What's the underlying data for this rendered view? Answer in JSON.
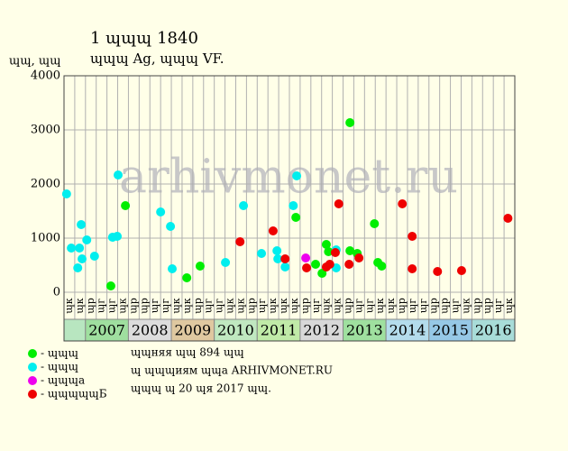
{
  "chart_data": {
    "type": "scatter",
    "title": "1 ɰɰɰ 1840",
    "subtitle": "ɰɰɰ Ag, ɰɰɰ VF.",
    "y_label": "ɰɰ, ɰɰ",
    "watermark": "arhivmonet.ru",
    "xlim": [
      2006.5,
      2017
    ],
    "ylim": [
      0,
      4000
    ],
    "yticks": [
      0,
      1000,
      2000,
      3000,
      4000
    ],
    "grid": true,
    "column_labels": [
      "ɰк",
      "ɰк",
      "ɰр",
      "ɰг",
      "ɰг",
      "ɰк",
      "ɰр",
      "ɰр",
      "ɰг",
      "ɰг",
      "ɰк",
      "ɰк",
      "ɰр",
      "ɰг",
      "ɰг",
      "ɰк",
      "ɰк",
      "ɰр",
      "ɰг",
      "ɰк",
      "ɰк",
      "ɰк",
      "ɰр",
      "ɰг",
      "ɰк",
      "ɰк",
      "ɰр",
      "ɰг",
      "ɰг",
      "ɰк",
      "ɰк",
      "ɰр",
      "ɰг",
      "ɰг",
      "ɰр",
      "ɰр",
      "ɰг",
      "ɰк",
      "ɰр",
      "ɰр",
      "ɰг",
      "ɰк"
    ],
    "year_bands": [
      {
        "label": "2007",
        "color": "#9fdf9f"
      },
      {
        "label": "2008",
        "color": "#dcdcdc"
      },
      {
        "label": "2009",
        "color": "#dfc8a0"
      },
      {
        "label": "2010",
        "color": "#c0e8c0"
      },
      {
        "label": "2011",
        "color": "#c0eaa8"
      },
      {
        "label": "2012",
        "color": "#d8d8d8"
      },
      {
        "label": "2013",
        "color": "#9fe09f"
      },
      {
        "label": "2014",
        "color": "#b4dcec"
      },
      {
        "label": "2015",
        "color": "#96c8e6"
      },
      {
        "label": "2016",
        "color": "#a8dcd8"
      }
    ],
    "first_band_color": "#b8e6c0",
    "series": [
      {
        "name": "- ɰɰɰ",
        "color": "#00ee00",
        "x": [
          2007.59,
          2007.93,
          2009.36,
          2009.67,
          2011.9,
          2012.36,
          2012.51,
          2012.61,
          2012.66,
          2013.16,
          2013.16,
          2013.33,
          2013.73,
          2013.81,
          2013.9
        ],
        "values": [
          117,
          1600,
          267,
          483,
          1383,
          517,
          350,
          883,
          750,
          3133,
          767,
          717,
          1267,
          550,
          483
        ]
      },
      {
        "name": "- ɰɰɰ",
        "color": "#00eeee",
        "x": [
          2006.56,
          2006.67,
          2006.82,
          2006.86,
          2006.9,
          2006.92,
          2007.03,
          2007.21,
          2007.63,
          2007.74,
          2007.76,
          2008.75,
          2008.98,
          2009.02,
          2010.26,
          2010.68,
          2011.1,
          2011.46,
          2011.48,
          2011.65,
          2011.84,
          2011.92,
          2012.84,
          2012.84
        ],
        "values": [
          1817,
          817,
          450,
          817,
          1250,
          617,
          967,
          667,
          1017,
          1033,
          2167,
          1483,
          1217,
          433,
          550,
          1600,
          717,
          767,
          617,
          467,
          1600,
          2150,
          783,
          450
        ]
      },
      {
        "name": "- ɰɰɰа",
        "color": "#ee00ee",
        "x": [
          2012.13
        ],
        "values": [
          633
        ]
      },
      {
        "name": "- ɰɰɰɰɰБ",
        "color": "#ee0000",
        "x": [
          2010.6,
          2011.37,
          2011.65,
          2012.15,
          2012.61,
          2012.69,
          2012.82,
          2012.9,
          2013.14,
          2013.37,
          2014.38,
          2014.61,
          2014.61,
          2015.2,
          2015.76,
          2016.84
        ],
        "values": [
          933,
          1133,
          617,
          450,
          467,
          517,
          733,
          1633,
          517,
          633,
          1633,
          1033,
          433,
          383,
          400,
          1367
        ]
      }
    ],
    "footer": [
      "ɰɰняя ɰɰ 894 ɰɰ",
      "ɰ ɰɰɰиям ɰɰа ARHIVMONET.RU",
      "ɰɰɰ ɰ 20 ɰя 2017 ɰɰ."
    ]
  }
}
